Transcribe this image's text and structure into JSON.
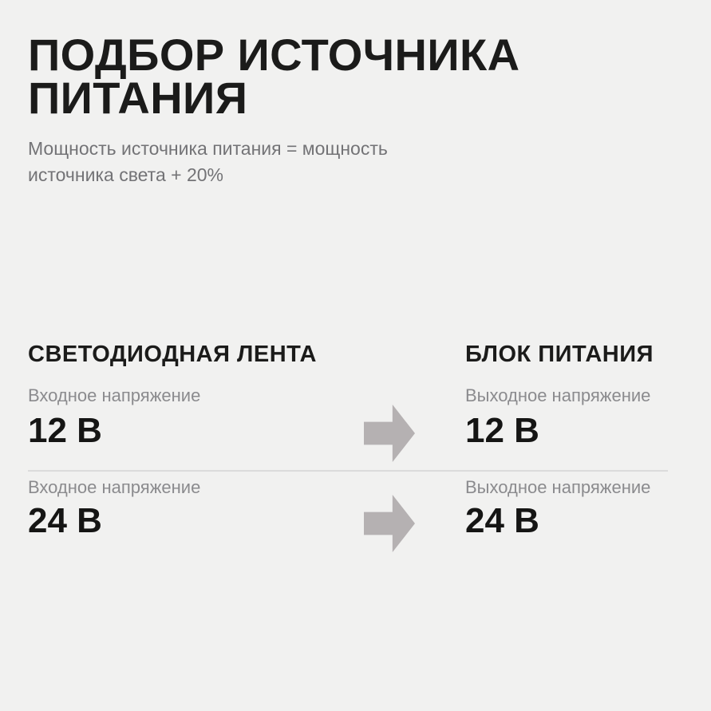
{
  "page": {
    "title": "ПОДБОР ИСТОЧНИКА ПИТАНИЯ",
    "subtitle": "Мощность источника питания = мощность источника света + 20%"
  },
  "comparison": {
    "left_header": "СВЕТОДИОДНАЯ ЛЕНТА",
    "right_header": "БЛОК ПИТАНИЯ",
    "rows": [
      {
        "left_label": "Входное напряжение",
        "left_value": "12 В",
        "right_label": "Выходное напряжение",
        "right_value": "12 В"
      },
      {
        "left_label": "Входное напряжение",
        "left_value": "24 В",
        "right_label": "Выходное напряжение",
        "right_value": "24 В"
      }
    ],
    "arrow_icon": "right-arrow"
  },
  "colors": {
    "bg": "#f1f1f0",
    "text-primary": "#1b1b1a",
    "text-subtitle": "#737376",
    "text-muted": "#8b8b8e",
    "arrow": "#b5b1b2",
    "divider": "#dbdbdb"
  }
}
